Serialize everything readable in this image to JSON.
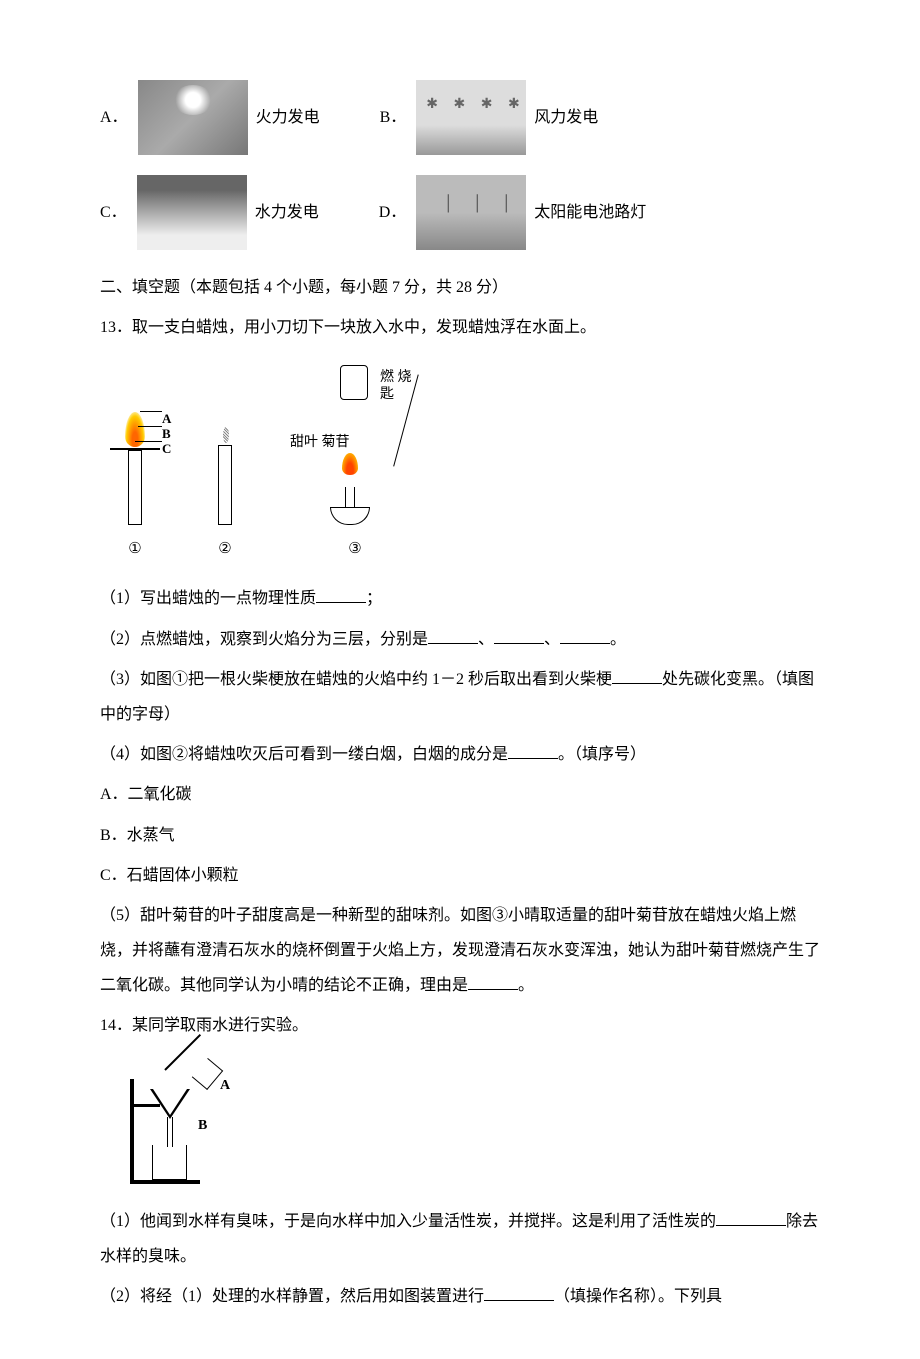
{
  "options12": {
    "A": {
      "label": "A．",
      "text": "火力发电"
    },
    "B": {
      "label": "B．",
      "text": "风力发电"
    },
    "C": {
      "label": "C．",
      "text": "水力发电"
    },
    "D": {
      "label": "D．",
      "text": "太阳能电池路灯"
    }
  },
  "section2": {
    "header": "二、填空题（本题包括 4 个小题，每小题 7 分，共 28 分）"
  },
  "q13": {
    "stem": "13．取一支白蜡烛，用小刀切下一块放入水中，发现蜡烛浮在水面上。",
    "diagram": {
      "labelA": "A",
      "labelB": "B",
      "labelC": "C",
      "num1": "①",
      "num2": "②",
      "num3": "③",
      "burner_label1": "甜叶\n菊苷",
      "burner_label2": "燃\n烧\n匙"
    },
    "p1_a": "（1）写出蜡烛的一点物理性质",
    "p1_b": "；",
    "p2_a": "（2）点燃蜡烛，观察到火焰分为三层，分别是",
    "p2_b": "、",
    "p2_c": "、",
    "p2_d": "。",
    "p3_a": "（3）如图①把一根火柴梗放在蜡烛的火焰中约 1－2 秒后取出看到火柴梗",
    "p3_b": "处先碳化变黑。（填图中的字母）",
    "p4_a": "（4）如图②将蜡烛吹灭后可看到一缕白烟，白烟的成分是",
    "p4_b": "。（填序号）",
    "optA": "A．二氧化碳",
    "optB": "B．水蒸气",
    "optC": "C．石蜡固体小颗粒",
    "p5_a": "（5）甜叶菊苷的叶子甜度高是一种新型的甜味剂。如图③小晴取适量的甜叶菊苷放在蜡烛火焰上燃烧，并将蘸有澄清石灰水的烧杯倒置于火焰上方，发现澄清石灰水变浑浊，她认为甜叶菊苷燃烧产生了二氧化碳。其他同学认为小晴的结论不正确，理由是",
    "p5_b": "。"
  },
  "q14": {
    "stem": "14．某同学取雨水进行实验。",
    "labelA": "A",
    "labelB": "B",
    "p1_a": "（1）他闻到水样有臭味，于是向水样中加入少量活性炭，并搅拌。这是利用了活性炭的",
    "p1_b": "除去水样的臭味。",
    "p2_a": "（2）将经（1）处理的水样静置，然后用如图装置进行",
    "p2_b": "（填操作名称）。下列具"
  }
}
